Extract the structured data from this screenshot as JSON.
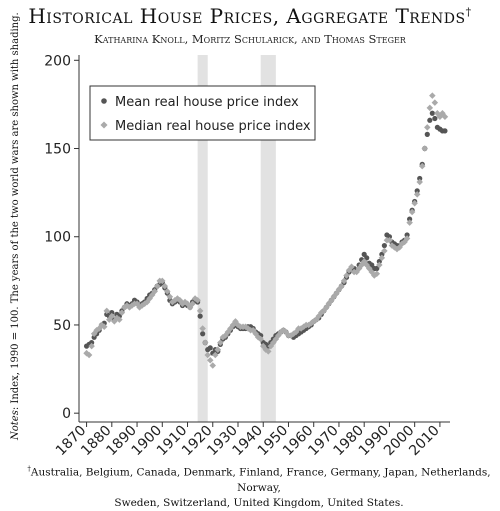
{
  "title": "Historical House Prices, Aggregate Trends",
  "title_mark": "†",
  "authors": "Katharina Knoll, Moritz Schularick, and Thomas Steger",
  "notes_label": "Notes",
  "notes_text": ": Index, 1990 = 100. The years of the two world wars are shown with shading.",
  "footnote_mark": "†",
  "footnote_line1": "Australia, Belgium, Canada, Denmark, Finland, France, Germany, Japan, Netherlands, Norway,",
  "footnote_line2": "Sweden, Switzerland, United Kingdom, United States.",
  "colors": {
    "mean": "#555555",
    "median": "#aaaaaa",
    "shade": "#e2e2e2"
  },
  "chart_data": {
    "type": "scatter",
    "x_ticks": [
      1870,
      1880,
      1890,
      1900,
      1910,
      1920,
      1930,
      1940,
      1950,
      1960,
      1970,
      1980,
      1990,
      2000,
      2010
    ],
    "y_ticks": [
      0,
      50,
      100,
      150,
      200
    ],
    "xlim": [
      1867,
      2014
    ],
    "ylim": [
      -5,
      203
    ],
    "shaded_periods": [
      [
        1914,
        1918
      ],
      [
        1939,
        1945
      ]
    ],
    "legend_position": "top-left",
    "series": [
      {
        "name": "Mean real house price index",
        "color": "#555555",
        "x": [
          1870,
          1871,
          1872,
          1873,
          1874,
          1875,
          1876,
          1877,
          1878,
          1879,
          1880,
          1881,
          1882,
          1883,
          1884,
          1885,
          1886,
          1887,
          1888,
          1889,
          1890,
          1891,
          1892,
          1893,
          1894,
          1895,
          1896,
          1897,
          1898,
          1899,
          1900,
          1901,
          1902,
          1903,
          1904,
          1905,
          1906,
          1907,
          1908,
          1909,
          1910,
          1911,
          1912,
          1913,
          1914,
          1915,
          1916,
          1917,
          1918,
          1919,
          1920,
          1921,
          1922,
          1923,
          1924,
          1925,
          1926,
          1927,
          1928,
          1929,
          1930,
          1931,
          1932,
          1933,
          1934,
          1935,
          1936,
          1937,
          1938,
          1939,
          1940,
          1941,
          1942,
          1943,
          1944,
          1945,
          1946,
          1947,
          1948,
          1949,
          1950,
          1951,
          1952,
          1953,
          1954,
          1955,
          1956,
          1957,
          1958,
          1959,
          1960,
          1961,
          1962,
          1963,
          1964,
          1965,
          1966,
          1967,
          1968,
          1969,
          1970,
          1971,
          1972,
          1973,
          1974,
          1975,
          1976,
          1977,
          1978,
          1979,
          1980,
          1981,
          1982,
          1983,
          1984,
          1985,
          1986,
          1987,
          1988,
          1989,
          1990,
          1991,
          1992,
          1993,
          1994,
          1995,
          1996,
          1997,
          1998,
          1999,
          2000,
          2001,
          2002,
          2003,
          2004,
          2005,
          2006,
          2007,
          2008,
          2009,
          2010,
          2011,
          2012
        ],
        "y": [
          38,
          39,
          40,
          43,
          45,
          47,
          50,
          51,
          56,
          55,
          57,
          53,
          56,
          55,
          58,
          60,
          62,
          61,
          62,
          64,
          63,
          61,
          62,
          63,
          65,
          67,
          68,
          70,
          72,
          73,
          74,
          71,
          68,
          64,
          62,
          63,
          64,
          63,
          61,
          62,
          61,
          60,
          63,
          64,
          63,
          55,
          45,
          40,
          36,
          37,
          34,
          36,
          35,
          39,
          42,
          43,
          45,
          47,
          49,
          50,
          49,
          48,
          48,
          48,
          49,
          49,
          48,
          46,
          45,
          44,
          40,
          39,
          38,
          40,
          42,
          44,
          45,
          46,
          47,
          46,
          44,
          44,
          43,
          44,
          45,
          46,
          47,
          48,
          49,
          50,
          52,
          53,
          54,
          56,
          58,
          60,
          62,
          64,
          66,
          68,
          70,
          72,
          74,
          77,
          80,
          82,
          82,
          81,
          84,
          87,
          90,
          88,
          85,
          84,
          82,
          82,
          86,
          90,
          95,
          101,
          100,
          97,
          96,
          95,
          95,
          97,
          98,
          101,
          110,
          115,
          120,
          126,
          133,
          141,
          150,
          158,
          166,
          170,
          167,
          162,
          161,
          160,
          160
        ]
      },
      {
        "name": "Median real house price index",
        "color": "#aaaaaa",
        "x": [
          1870,
          1871,
          1872,
          1873,
          1874,
          1875,
          1876,
          1877,
          1878,
          1879,
          1880,
          1881,
          1882,
          1883,
          1884,
          1885,
          1886,
          1887,
          1888,
          1889,
          1890,
          1891,
          1892,
          1893,
          1894,
          1895,
          1896,
          1897,
          1898,
          1899,
          1900,
          1901,
          1902,
          1903,
          1904,
          1905,
          1906,
          1907,
          1908,
          1909,
          1910,
          1911,
          1912,
          1913,
          1914,
          1915,
          1916,
          1917,
          1918,
          1919,
          1920,
          1921,
          1922,
          1923,
          1924,
          1925,
          1926,
          1927,
          1928,
          1929,
          1930,
          1931,
          1932,
          1933,
          1934,
          1935,
          1936,
          1937,
          1938,
          1939,
          1940,
          1941,
          1942,
          1943,
          1944,
          1945,
          1946,
          1947,
          1948,
          1949,
          1950,
          1951,
          1952,
          1953,
          1954,
          1955,
          1956,
          1957,
          1958,
          1959,
          1960,
          1961,
          1962,
          1963,
          1964,
          1965,
          1966,
          1967,
          1968,
          1969,
          1970,
          1971,
          1972,
          1973,
          1974,
          1975,
          1976,
          1977,
          1978,
          1979,
          1980,
          1981,
          1982,
          1983,
          1984,
          1985,
          1986,
          1987,
          1988,
          1989,
          1990,
          1991,
          1992,
          1993,
          1994,
          1995,
          1996,
          1997,
          1998,
          1999,
          2000,
          2001,
          2002,
          2003,
          2004,
          2005,
          2006,
          2007,
          2008,
          2009,
          2010,
          2011,
          2012
        ],
        "y": [
          34,
          33,
          38,
          45,
          47,
          48,
          50,
          49,
          58,
          53,
          55,
          52,
          54,
          53,
          57,
          60,
          61,
          60,
          61,
          62,
          62,
          60,
          61,
          62,
          63,
          65,
          67,
          69,
          72,
          75,
          75,
          72,
          69,
          66,
          63,
          64,
          65,
          64,
          62,
          63,
          62,
          60,
          62,
          65,
          64,
          58,
          48,
          40,
          33,
          30,
          27,
          33,
          36,
          40,
          43,
          44,
          46,
          48,
          50,
          52,
          50,
          49,
          49,
          49,
          48,
          47,
          47,
          45,
          43,
          42,
          38,
          36,
          35,
          38,
          40,
          42,
          44,
          46,
          47,
          46,
          44,
          44,
          45,
          46,
          48,
          48,
          49,
          50,
          50,
          51,
          52,
          53,
          55,
          57,
          58,
          60,
          62,
          64,
          66,
          68,
          70,
          72,
          75,
          78,
          81,
          83,
          80,
          80,
          82,
          84,
          86,
          84,
          82,
          80,
          78,
          79,
          84,
          88,
          92,
          98,
          98,
          95,
          94,
          93,
          94,
          96,
          97,
          99,
          108,
          114,
          119,
          124,
          131,
          140,
          150,
          162,
          173,
          180,
          176,
          170,
          168,
          170,
          168
        ]
      }
    ]
  }
}
